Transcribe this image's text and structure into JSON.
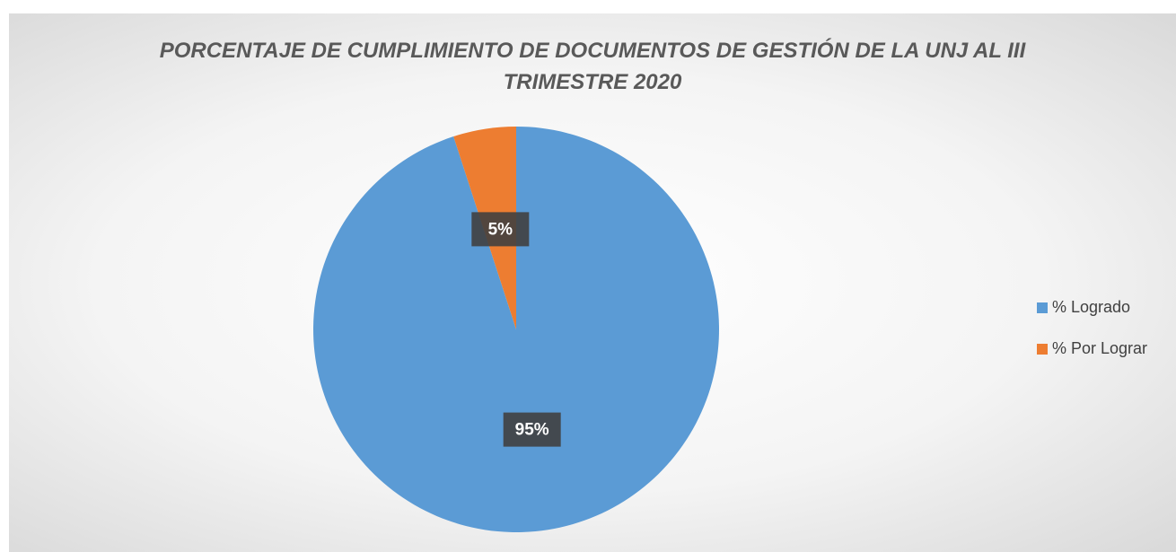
{
  "chart_data": {
    "type": "pie",
    "title": "PORCENTAJE DE CUMPLIMIENTO DE DOCUMENTOS DE GESTIÓN DE LA UNJ AL III TRIMESTRE 2020",
    "categories": [
      "% Logrado",
      "% Por Lograr"
    ],
    "values": [
      95,
      5
    ],
    "value_labels": [
      "95%",
      "5%"
    ],
    "colors": [
      "#5b9bd5",
      "#ed7d31"
    ],
    "legend": "right"
  }
}
